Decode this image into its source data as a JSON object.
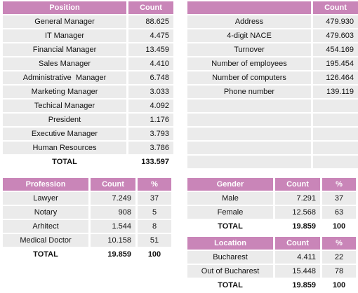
{
  "position_table": {
    "headers": [
      "Position",
      "Count"
    ],
    "rows": [
      [
        "General Manager",
        "88.625"
      ],
      [
        "IT Manager",
        "4.475"
      ],
      [
        "Financial Manager",
        "13.459"
      ],
      [
        "Sales Manager",
        "4.410"
      ],
      [
        "Administrative  Manager",
        "6.748"
      ],
      [
        "Marketing Manager",
        "3.033"
      ],
      [
        "Techical Manager",
        "4.092"
      ],
      [
        "President",
        "1.176"
      ],
      [
        "Executive Manager",
        "3.793"
      ],
      [
        "Human Resources",
        "3.786"
      ]
    ],
    "total": [
      "TOTAL",
      "133.597"
    ]
  },
  "fields_table": {
    "headers": [
      "",
      "Count"
    ],
    "rows": [
      [
        "Address",
        "479.930"
      ],
      [
        "4-digit NACE",
        "479.603"
      ],
      [
        "Turnover",
        "454.169"
      ],
      [
        "Number of employees",
        "195.454"
      ],
      [
        "Number of computers",
        "126.464"
      ],
      [
        "Phone number",
        "139.119"
      ]
    ]
  },
  "profession_table": {
    "headers": [
      "Profession",
      "Count",
      "%"
    ],
    "rows": [
      [
        "Lawyer",
        "7.249",
        "37"
      ],
      [
        "Notary",
        "908",
        "5"
      ],
      [
        "Arhitect",
        "1.544",
        "8"
      ],
      [
        "Medical Doctor",
        "10.158",
        "51"
      ]
    ],
    "total": [
      "TOTAL",
      "19.859",
      "100"
    ]
  },
  "gender_table": {
    "headers": [
      "Gender",
      "Count",
      "%"
    ],
    "rows": [
      [
        "Male",
        "7.291",
        "37"
      ],
      [
        "Female",
        "12.568",
        "63"
      ]
    ],
    "total": [
      "TOTAL",
      "19.859",
      "100"
    ]
  },
  "location_table": {
    "headers": [
      "Location",
      "Count",
      "%"
    ],
    "rows": [
      [
        "Bucharest",
        "4.411",
        "22"
      ],
      [
        "Out of Bucharest",
        "15.448",
        "78"
      ]
    ],
    "total": [
      "TOTAL",
      "19.859",
      "100"
    ]
  }
}
